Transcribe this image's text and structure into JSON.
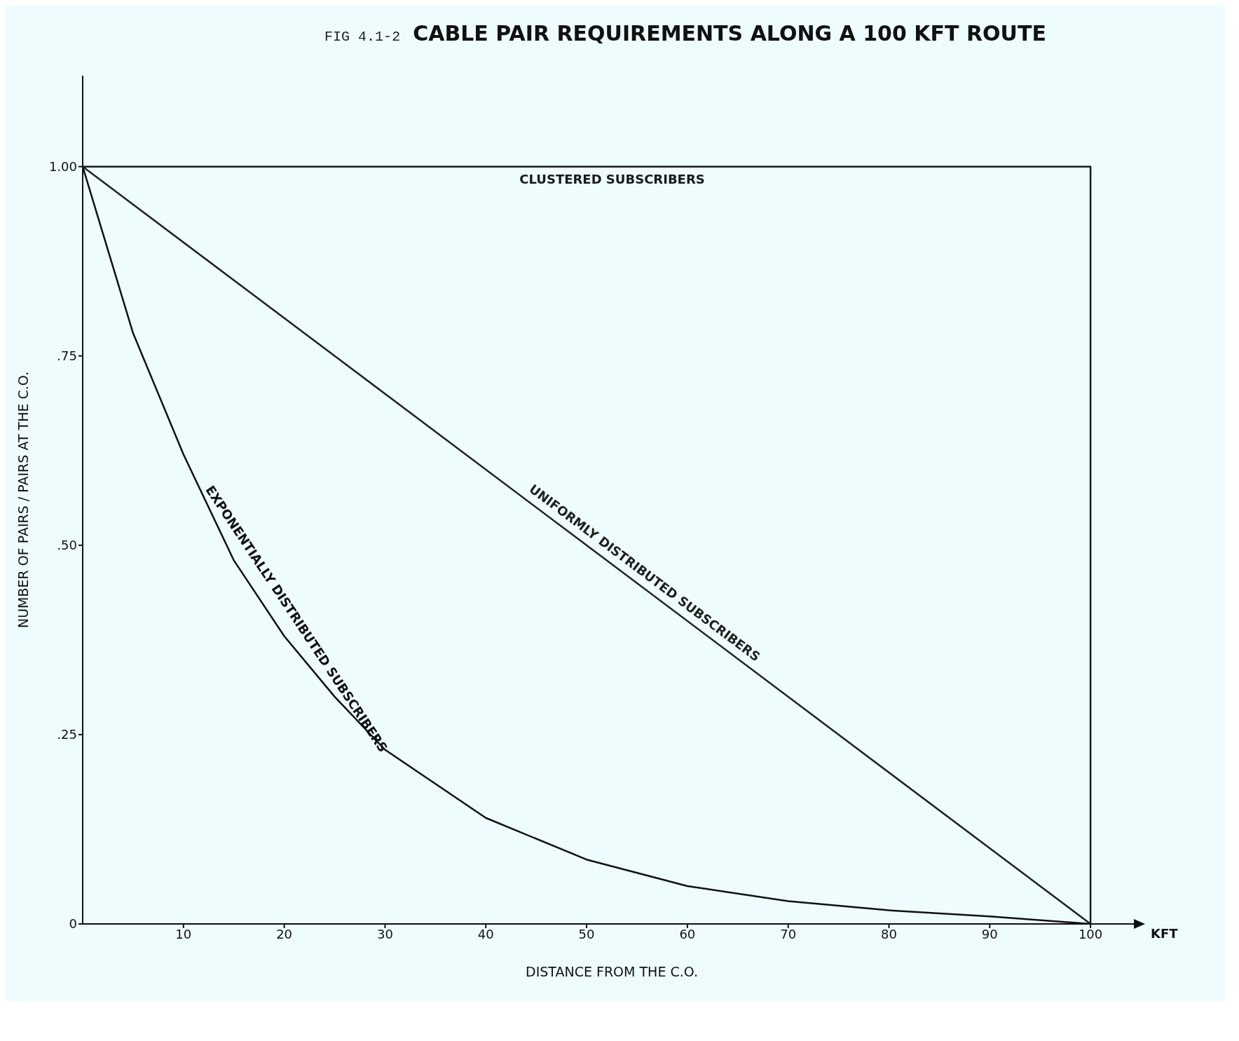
{
  "chart_data": {
    "type": "line",
    "title": "CABLE PAIR REQUIREMENTS ALONG A 100 KFT ROUTE",
    "subtitle": "FIG 4.1-2",
    "xlabel": "DISTANCE FROM THE C.O.",
    "ylabel": "NUMBER OF PAIRS / PAIRS AT THE C.O.",
    "annotations": [
      "KFT"
    ],
    "xlim": [
      0,
      105
    ],
    "xticks": [
      10,
      20,
      30,
      40,
      50,
      60,
      70,
      80,
      90,
      100
    ],
    "ylim": [
      0,
      1.12
    ],
    "yticks": [
      {
        "value": 0,
        "label": "0"
      },
      {
        "value": 0.25,
        "label": ".25"
      },
      {
        "value": 0.5,
        "label": ".50"
      },
      {
        "value": 0.75,
        "label": ".75"
      },
      {
        "value": 1,
        "label": "1.00"
      }
    ],
    "grid": false,
    "marker": "none",
    "line_style": "solid",
    "series": [
      {
        "name": "UNIFORMLY DISTRIBUTED SUBSCRIBERS",
        "color": "#202020",
        "x": [
          0,
          100
        ],
        "values": [
          1,
          0
        ]
      },
      {
        "name": "EXPONENTIALLY DISTRIBUTED SUBSCRIBERS",
        "color": "#101010",
        "x": [
          0,
          5,
          10,
          15,
          20,
          25,
          30,
          40,
          50,
          60,
          70,
          80,
          90,
          100
        ],
        "values": [
          1,
          0.78,
          0.62,
          0.48,
          0.38,
          0.3,
          0.23,
          0.14,
          0.085,
          0.05,
          0.03,
          0.018,
          0.01,
          0
        ]
      },
      {
        "name": "CLUSTERED SUBSCRIBERS",
        "color": "#1a1a1a",
        "x": [
          0,
          100,
          100
        ],
        "values": [
          1,
          1,
          0
        ]
      }
    ]
  }
}
